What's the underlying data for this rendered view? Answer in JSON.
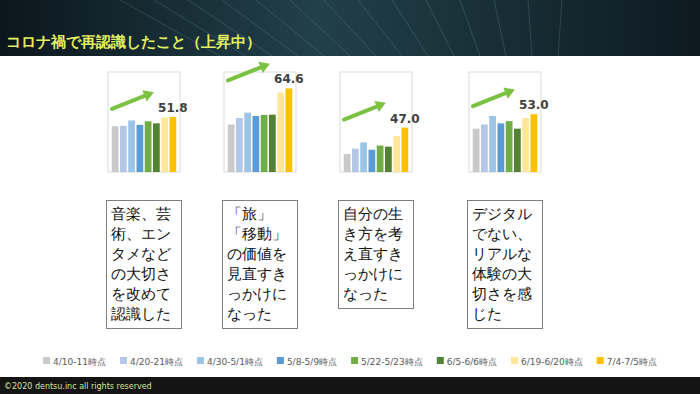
{
  "chart_data": {
    "type": "bar",
    "title": "コロナ禍で再認識したこと（上昇中）",
    "categories": [
      "音楽、芸術、エンタメなどの大切さを改めて認識した",
      "「旅」「移動」の価値を見直すきっかけになった",
      "自分の生き方を考え直すきっかけになった",
      "デジタルでない、リアルな体験の大切さを感じた"
    ],
    "series": [
      {
        "name": "4/10-11時点",
        "color": "#c9c9c9",
        "values": [
          47.6,
          48.4,
          35.1,
          46.5
        ]
      },
      {
        "name": "4/20-21時点",
        "color": "#b4c7e7",
        "values": [
          47.8,
          51.3,
          37.5,
          48.4
        ]
      },
      {
        "name": "4/30-5/1時点",
        "color": "#9dc3e6",
        "values": [
          50.2,
          53.7,
          40.3,
          52.2
        ]
      },
      {
        "name": "5/8-5/9時点",
        "color": "#5b9bd5",
        "values": [
          48.2,
          52.2,
          37.0,
          48.9
        ]
      },
      {
        "name": "5/22-5/23時点",
        "color": "#70ad47",
        "values": [
          49.8,
          52.7,
          38.9,
          49.9
        ]
      },
      {
        "name": "6/5-6/6時点",
        "color": "#548235",
        "values": [
          48.9,
          52.8,
          38.4,
          46.5
        ]
      },
      {
        "name": "6/19-6/20時点",
        "color": "#ffe699",
        "values": [
          51.5,
          62.7,
          43.2,
          51.3
        ]
      },
      {
        "name": "7/4-7/5時点",
        "color": "#ffc000",
        "values": [
          51.8,
          64.6,
          47.0,
          53.0
        ],
        "value_labels": [
          "51.8",
          "64.6",
          "47.0",
          "53.0"
        ],
        "data_labels": true
      }
    ],
    "ylim": [
      27,
      72
    ],
    "tick_labels": false,
    "grid": false,
    "legend": "bottom"
  },
  "footer": "©2020 dentsu.inc all rights reserved"
}
